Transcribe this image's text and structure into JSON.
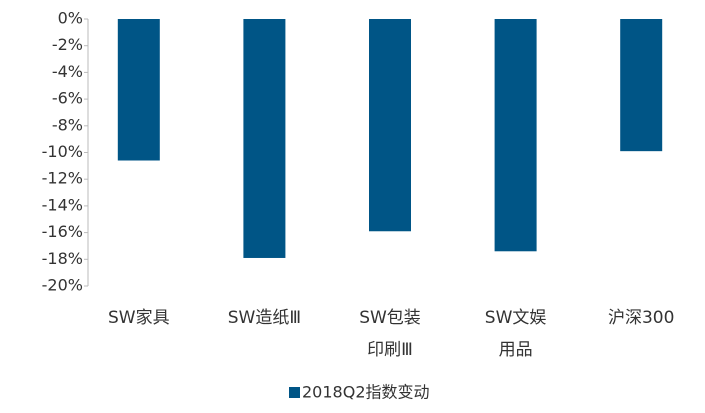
{
  "chart_data": {
    "type": "bar",
    "categories": [
      [
        "SW家具"
      ],
      [
        "SW造纸Ⅲ"
      ],
      [
        "SW包装",
        "印刷Ⅲ"
      ],
      [
        "SW文娱",
        "用品"
      ],
      [
        "沪深300"
      ]
    ],
    "series": [
      {
        "name": "2018Q2指数变动",
        "color": "#005586",
        "values": [
          -10.6,
          -17.9,
          -15.9,
          -17.4,
          -9.9
        ]
      }
    ],
    "ylim": [
      -20,
      0
    ],
    "yticks": [
      {
        "value": 0,
        "label": "0%"
      },
      {
        "value": -2,
        "label": "-2%"
      },
      {
        "value": -4,
        "label": "-4%"
      },
      {
        "value": -6,
        "label": "-6%"
      },
      {
        "value": -8,
        "label": "-8%"
      },
      {
        "value": -10,
        "label": "-10%"
      },
      {
        "value": -12,
        "label": "-12%"
      },
      {
        "value": -14,
        "label": "-14%"
      },
      {
        "value": -16,
        "label": "-16%"
      },
      {
        "value": -18,
        "label": "-18%"
      },
      {
        "value": -20,
        "label": "-20%"
      }
    ],
    "legend": "bottom"
  }
}
